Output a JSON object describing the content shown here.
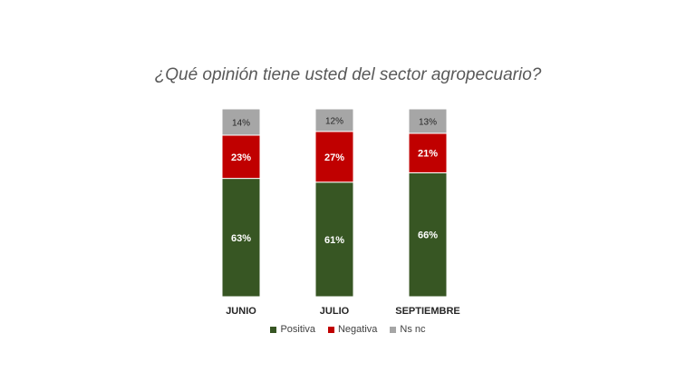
{
  "chart_data": {
    "type": "stacked-bar-100",
    "title": "¿Qué opinión tiene usted del sector agropecuario?",
    "categories": [
      "JUNIO",
      "JULIO",
      "SEPTIEMBRE"
    ],
    "series": [
      {
        "name": "Positiva",
        "color": "#375623",
        "values": [
          63,
          61,
          66
        ],
        "labels": [
          "63%",
          "61%",
          "66%"
        ]
      },
      {
        "name": "Negativa",
        "color": "#C00000",
        "values": [
          23,
          27,
          21
        ],
        "labels": [
          "23%",
          "27%",
          "21%"
        ]
      },
      {
        "name": "Ns nc",
        "color": "#A6A6A6",
        "values": [
          14,
          12,
          13
        ],
        "labels": [
          "14%",
          "12%",
          "13%"
        ]
      }
    ],
    "ylim": [
      0,
      100
    ],
    "legend_position": "bottom",
    "grid": false
  }
}
